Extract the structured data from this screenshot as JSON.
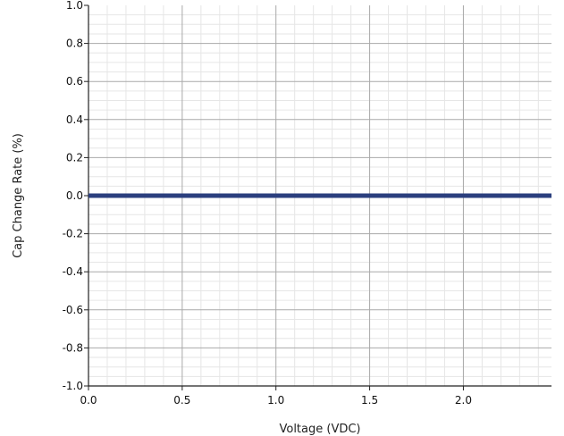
{
  "chart_data": {
    "type": "line",
    "title": "",
    "xlabel": "Voltage (VDC)",
    "ylabel": "Cap Change Rate (%)",
    "xlim": [
      0.0,
      2.47
    ],
    "ylim": [
      -1.0,
      1.0
    ],
    "xticks": [
      "0.0",
      "0.5",
      "1.0",
      "1.5",
      "2.0"
    ],
    "yticks": [
      "1.0",
      "0.8",
      "0.6",
      "0.4",
      "0.2",
      "0.0",
      "-0.2",
      "-0.4",
      "-0.6",
      "-0.8",
      "-1.0"
    ],
    "grid": true,
    "legend": "none",
    "series": [
      {
        "color": "#2b3f7e",
        "x": [
          0.0,
          0.5,
          1.0,
          1.5,
          2.0,
          2.47
        ],
        "y": [
          0.0,
          0.0,
          0.0,
          0.0,
          0.0,
          0.0
        ]
      }
    ]
  }
}
